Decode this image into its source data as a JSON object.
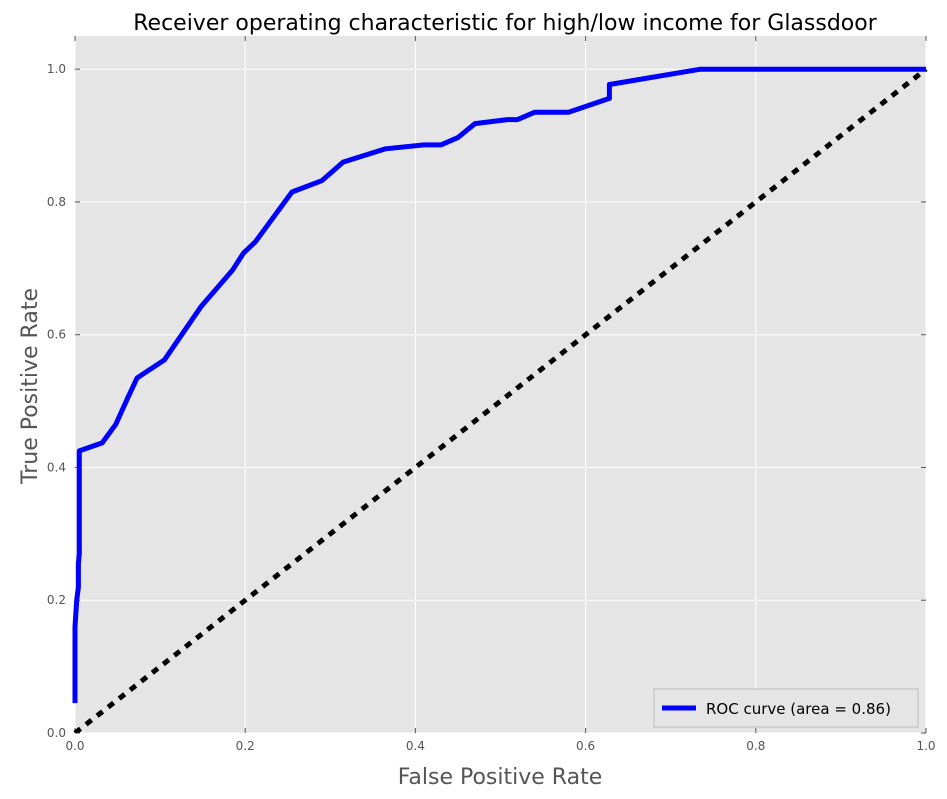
{
  "chart_data": {
    "type": "line",
    "title": "Receiver operating characteristic for high/low income for Glassdoor",
    "xlabel": "False Positive Rate",
    "ylabel": "True Positive Rate",
    "xlim": [
      0.0,
      1.0
    ],
    "ylim": [
      0.0,
      1.05
    ],
    "xticks": [
      0.0,
      0.2,
      0.4,
      0.6,
      0.8,
      1.0
    ],
    "xtick_labels": [
      "0.0",
      "0.2",
      "0.4",
      "0.6",
      "0.8",
      "1.0"
    ],
    "yticks": [
      0.0,
      0.2,
      0.4,
      0.6,
      0.8,
      1.0
    ],
    "ytick_labels": [
      "0.0",
      "0.2",
      "0.4",
      "0.6",
      "0.8",
      "1.0"
    ],
    "grid": true,
    "legend_position": "bottom-right",
    "background_color": "#e5e5e5",
    "series": [
      {
        "name": "ROC curve (area = 0.86)",
        "color": "#0000ff",
        "style": "solid",
        "x": [
          0.0,
          0.0,
          0.002,
          0.004,
          0.004,
          0.005,
          0.005,
          0.032,
          0.048,
          0.062,
          0.073,
          0.105,
          0.148,
          0.185,
          0.198,
          0.212,
          0.255,
          0.29,
          0.315,
          0.365,
          0.41,
          0.43,
          0.45,
          0.47,
          0.508,
          0.52,
          0.54,
          0.58,
          0.628,
          0.628,
          0.735,
          1.0
        ],
        "y": [
          0.045,
          0.16,
          0.2,
          0.22,
          0.255,
          0.27,
          0.425,
          0.437,
          0.465,
          0.505,
          0.535,
          0.562,
          0.642,
          0.697,
          0.723,
          0.74,
          0.815,
          0.832,
          0.86,
          0.88,
          0.886,
          0.886,
          0.897,
          0.918,
          0.924,
          0.924,
          0.935,
          0.935,
          0.956,
          0.977,
          1.0,
          1.0
        ]
      },
      {
        "name": "",
        "color": "#000000",
        "style": "dashed",
        "x": [
          0.0,
          1.0
        ],
        "y": [
          0.0,
          1.0
        ]
      }
    ]
  }
}
